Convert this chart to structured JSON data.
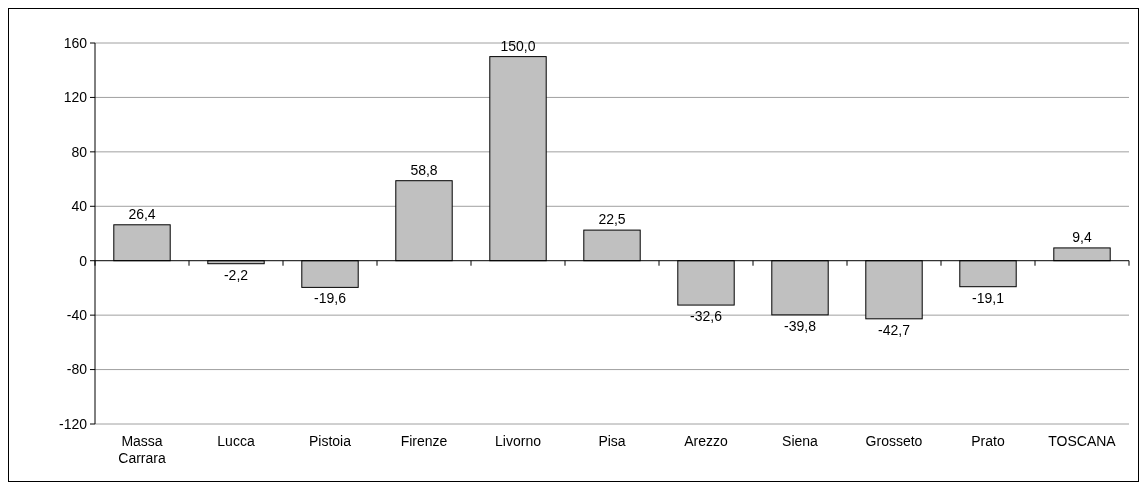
{
  "chart_data": {
    "type": "bar",
    "categories": [
      "Massa Carrara",
      "Lucca",
      "Pistoia",
      "Firenze",
      "Livorno",
      "Pisa",
      "Arezzo",
      "Siena",
      "Grosseto",
      "Prato",
      "TOSCANA"
    ],
    "values": [
      26.4,
      -2.2,
      -19.6,
      58.8,
      150.0,
      22.5,
      -32.6,
      -39.8,
      -42.7,
      -19.1,
      9.4
    ],
    "value_labels": [
      "26,4",
      "-2,2",
      "-19,6",
      "58,8",
      "150,0",
      "22,5",
      "-32,6",
      "-39,8",
      "-42,7",
      "-19,1",
      "9,4"
    ],
    "color": "#c0c0c0",
    "ylim": [
      -120,
      160
    ],
    "yticks": [
      -120,
      -80,
      -40,
      0,
      40,
      80,
      120,
      160
    ],
    "grid": "y"
  }
}
